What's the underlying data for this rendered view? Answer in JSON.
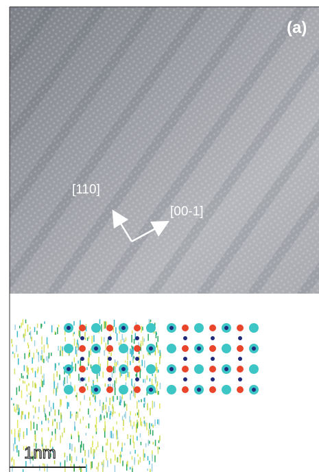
{
  "panel_label": "(a)",
  "directions": [
    "[110]",
    "[00-1]"
  ],
  "scale_bar": "1nm"
}
